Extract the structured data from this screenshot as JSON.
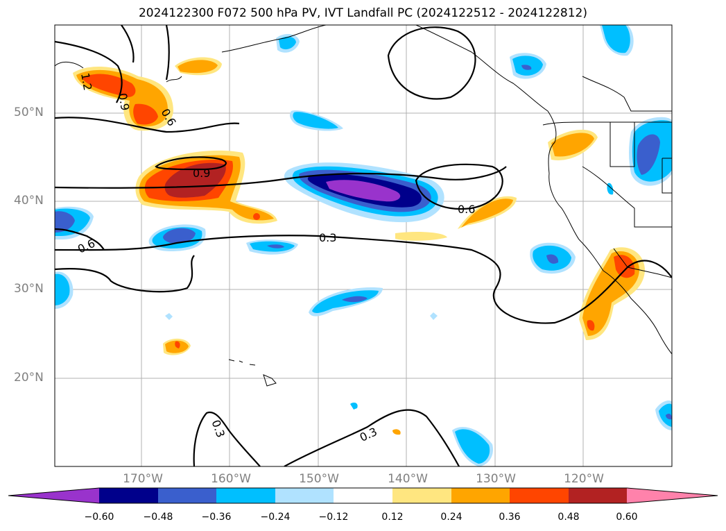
{
  "title": "2024122300 F072 500 hPa PV, IVT Landfall PC (2024122512 - 2024122812)",
  "map": {
    "lat_labels": [
      "50°N",
      "40°N",
      "30°N",
      "20°N"
    ],
    "lon_labels": [
      "170°W",
      "160°W",
      "150°W",
      "140°W",
      "130°W",
      "120°W"
    ],
    "contour_labels": [
      "1.2",
      "0.9",
      "0.6",
      "0.9",
      "0.6",
      "0.6",
      "0.3",
      "0.3",
      "0.3"
    ]
  },
  "colorbar": {
    "ticks": [
      "−0.60",
      "−0.48",
      "−0.36",
      "−0.24",
      "−0.12",
      "0.12",
      "0.24",
      "0.36",
      "0.48",
      "0.60"
    ],
    "colors": [
      "#9933cc",
      "#00008b",
      "#3a5fcd",
      "#00bfff",
      "#b0e2ff",
      "#ffffff",
      "#ffe680",
      "#ffa500",
      "#ff4500",
      "#b22222",
      "#ff82ab"
    ]
  }
}
